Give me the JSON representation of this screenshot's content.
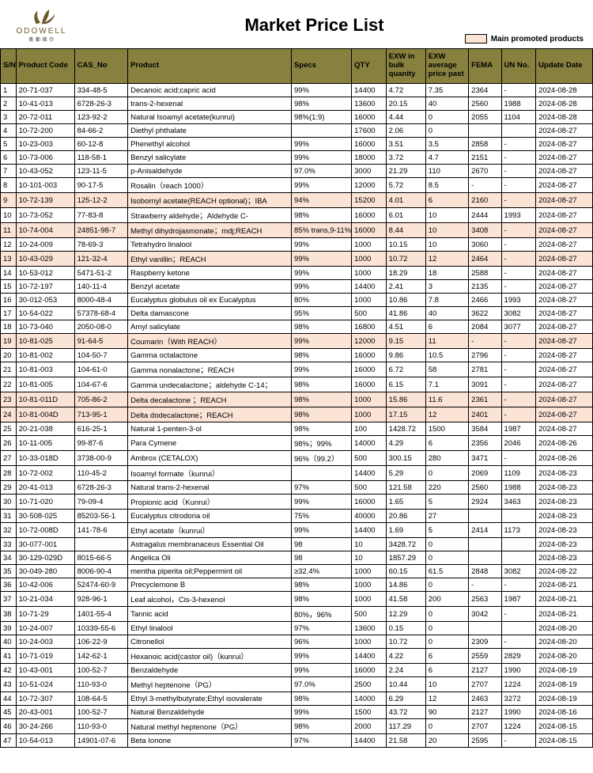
{
  "brand": {
    "name": "ODOWELL",
    "sub": "奥 都 维 尔"
  },
  "title": "Market Price List",
  "legend_label": "Main promoted products",
  "colors": {
    "header_bg": "#87803f",
    "promoted_bg": "#fbe3d5",
    "border": "#000000",
    "logo_brown": "#6b5a2a"
  },
  "columns": [
    "S/N",
    "Product Code",
    "CAS_No",
    "Product",
    "Specs",
    "QTY",
    "EXW in bulk quanity",
    "EXW average price past",
    "FEMA",
    "UN No.",
    "Update Date"
  ],
  "rows": [
    {
      "sn": "1",
      "pc": "20-71-037",
      "cas": "334-48-5",
      "prod": "Decanoic acid;capric acid",
      "specs": "99%",
      "qty": "14400",
      "exw1": "4.72",
      "exw2": "7.35",
      "fema": "2364",
      "un": "-",
      "date": "2024-08-28",
      "p": false
    },
    {
      "sn": "2",
      "pc": "10-41-013",
      "cas": "6728-26-3",
      "prod": "trans-2-hexenal",
      "specs": "98%",
      "qty": "13600",
      "exw1": "20.15",
      "exw2": "40",
      "fema": "2560",
      "un": "1988",
      "date": "2024-08-28",
      "p": false
    },
    {
      "sn": "3",
      "pc": "20-72-011",
      "cas": "123-92-2",
      "prod": "Natural Isoamyl acetate(kunrui)",
      "specs": "98%(1:9)",
      "qty": "16000",
      "exw1": "4.44",
      "exw2": "0",
      "fema": "2055",
      "un": "1104",
      "date": "2024-08-28",
      "p": false
    },
    {
      "sn": "4",
      "pc": "10-72-200",
      "cas": "84-66-2",
      "prod": "Diethyl phthalate",
      "specs": "",
      "qty": "17600",
      "exw1": "2.06",
      "exw2": "0",
      "fema": "",
      "un": "",
      "date": "2024-08-27",
      "p": false
    },
    {
      "sn": "5",
      "pc": "10-23-003",
      "cas": "60-12-8",
      "prod": "Phenethyl alcohol",
      "specs": "99%",
      "qty": "16000",
      "exw1": "3.51",
      "exw2": "3.5",
      "fema": "2858",
      "un": "-",
      "date": "2024-08-27",
      "p": false
    },
    {
      "sn": "6",
      "pc": "10-73-006",
      "cas": "118-58-1",
      "prod": "Benzyl salicylate",
      "specs": "99%",
      "qty": "18000",
      "exw1": "3.72",
      "exw2": "4.7",
      "fema": "2151",
      "un": "-",
      "date": "2024-08-27",
      "p": false
    },
    {
      "sn": "7",
      "pc": "10-43-052",
      "cas": "123-11-5",
      "prod": "p-Anisaldehyde",
      "specs": "97.0%",
      "qty": "3000",
      "exw1": "21.29",
      "exw2": "110",
      "fema": "2670",
      "un": "-",
      "date": "2024-08-27",
      "p": false
    },
    {
      "sn": "8",
      "pc": "10-101-003",
      "cas": "90-17-5",
      "prod": "Rosalin（reach 1000）",
      "specs": "99%",
      "qty": "12000",
      "exw1": "5.72",
      "exw2": "8.5",
      "fema": "-",
      "un": "-",
      "date": "2024-08-27",
      "p": false
    },
    {
      "sn": "9",
      "pc": "10-72-139",
      "cas": "125-12-2",
      "prod": "Isobornyl acetate(REACH optional)；IBA",
      "specs": "94%",
      "qty": "15200",
      "exw1": "4.01",
      "exw2": "6",
      "fema": "2160",
      "un": "-",
      "date": "2024-08-27",
      "p": true
    },
    {
      "sn": "10",
      "pc": "10-73-052",
      "cas": "77-83-8",
      "prod": "Strawberry aldehyde；Aldehyde C-",
      "specs": "98%",
      "qty": "16000",
      "exw1": "6.01",
      "exw2": "10",
      "fema": "2444",
      "un": "1993",
      "date": "2024-08-27",
      "p": false
    },
    {
      "sn": "11",
      "pc": "10-74-004",
      "cas": "24851-98-7",
      "prod": "Methyl dihydrojasmonate；mdj;REACH",
      "specs": "85% trans,9-11%",
      "qty": "16000",
      "exw1": "8.44",
      "exw2": "10",
      "fema": "3408",
      "un": "-",
      "date": "2024-08-27",
      "p": true
    },
    {
      "sn": "12",
      "pc": "10-24-009",
      "cas": "78-69-3",
      "prod": "Tetrahydro linalool",
      "specs": "99%",
      "qty": "1000",
      "exw1": "10.15",
      "exw2": "10",
      "fema": "3060",
      "un": "-",
      "date": "2024-08-27",
      "p": false
    },
    {
      "sn": "13",
      "pc": "10-43-029",
      "cas": "121-32-4",
      "prod": "Ethyl vanillin；REACH",
      "specs": "99%",
      "qty": "1000",
      "exw1": "10.72",
      "exw2": "12",
      "fema": "2464",
      "un": "-",
      "date": "2024-08-27",
      "p": true
    },
    {
      "sn": "14",
      "pc": "10-53-012",
      "cas": "5471-51-2",
      "prod": "Raspberry ketone",
      "specs": "99%",
      "qty": "1000",
      "exw1": "18.29",
      "exw2": "18",
      "fema": "2588",
      "un": "-",
      "date": "2024-08-27",
      "p": false
    },
    {
      "sn": "15",
      "pc": "10-72-197",
      "cas": "140-11-4",
      "prod": "Benzyl acetate",
      "specs": "99%",
      "qty": "14400",
      "exw1": "2.41",
      "exw2": "3",
      "fema": "2135",
      "un": "-",
      "date": "2024-08-27",
      "p": false
    },
    {
      "sn": "16",
      "pc": "30-012-053",
      "cas": "8000-48-4",
      "prod": "Eucalyptus globulus oil ex Eucalyptus",
      "specs": "80%",
      "qty": "1000",
      "exw1": "10.86",
      "exw2": "7.8",
      "fema": "2466",
      "un": "1993",
      "date": "2024-08-27",
      "p": false
    },
    {
      "sn": "17",
      "pc": "10-54-022",
      "cas": "57378-68-4",
      "prod": "Delta damascone",
      "specs": "95%",
      "qty": "500",
      "exw1": "41.86",
      "exw2": "40",
      "fema": "3622",
      "un": "3082",
      "date": "2024-08-27",
      "p": false
    },
    {
      "sn": "18",
      "pc": "10-73-040",
      "cas": "2050-08-0",
      "prod": "Amyl salicylate",
      "specs": "98%",
      "qty": "16800",
      "exw1": "4.51",
      "exw2": "6",
      "fema": "2084",
      "un": "3077",
      "date": "2024-08-27",
      "p": false
    },
    {
      "sn": "19",
      "pc": "10-81-025",
      "cas": "91-64-5",
      "prod": "Coumarin（With REACH）",
      "specs": "99%",
      "qty": "12000",
      "exw1": "9.15",
      "exw2": "11",
      "fema": "-",
      "un": "-",
      "date": "2024-08-27",
      "p": true
    },
    {
      "sn": "20",
      "pc": "10-81-002",
      "cas": "104-50-7",
      "prod": "Gamma octalactone",
      "specs": "98%",
      "qty": "16000",
      "exw1": "9.86",
      "exw2": "10.5",
      "fema": "2796",
      "un": "-",
      "date": "2024-08-27",
      "p": false
    },
    {
      "sn": "21",
      "pc": "10-81-003",
      "cas": "104-61-0",
      "prod": "Gamma nonalactone；REACH",
      "specs": "99%",
      "qty": "16000",
      "exw1": "6.72",
      "exw2": "58",
      "fema": "2781",
      "un": "-",
      "date": "2024-08-27",
      "p": false
    },
    {
      "sn": "22",
      "pc": "10-81-005",
      "cas": "104-67-6",
      "prod": "Gamma undecalactone；aldehyde C-14；",
      "specs": "98%",
      "qty": "16000",
      "exw1": "6.15",
      "exw2": "7.1",
      "fema": "3091",
      "un": "-",
      "date": "2024-08-27",
      "p": false
    },
    {
      "sn": "23",
      "pc": "10-81-011D",
      "cas": "705-86-2",
      "prod": "Delta decalactone ；REACH",
      "specs": "98%",
      "qty": "1000",
      "exw1": "15.86",
      "exw2": "11.6",
      "fema": "2361",
      "un": "-",
      "date": "2024-08-27",
      "p": true
    },
    {
      "sn": "24",
      "pc": "10-81-004D",
      "cas": "713-95-1",
      "prod": "Delta dodecalactone；REACH",
      "specs": "98%",
      "qty": "1000",
      "exw1": "17.15",
      "exw2": "12",
      "fema": "2401",
      "un": "-",
      "date": "2024-08-27",
      "p": true
    },
    {
      "sn": "25",
      "pc": "20-21-038",
      "cas": "616-25-1",
      "prod": "Natural 1-penten-3-ol",
      "specs": "98%",
      "qty": "100",
      "exw1": "1428.72",
      "exw2": "1500",
      "fema": "3584",
      "un": "1987",
      "date": "2024-08-27",
      "p": false
    },
    {
      "sn": "26",
      "pc": "10-11-005",
      "cas": "99-87-6",
      "prod": "Para Cymene",
      "specs": "98%；99%",
      "qty": "14000",
      "exw1": "4.29",
      "exw2": "6",
      "fema": "2356",
      "un": "2046",
      "date": "2024-08-26",
      "p": false
    },
    {
      "sn": "27",
      "pc": "10-33-018D",
      "cas": "3738-00-9",
      "prod": "Ambrox (CETALOX)",
      "specs": "96%（99.2）",
      "qty": "500",
      "exw1": "300.15",
      "exw2": "280",
      "fema": "3471",
      "un": "-",
      "date": "2024-08-26",
      "p": false
    },
    {
      "sn": "28",
      "pc": "10-72-002",
      "cas": "110-45-2",
      "prod": "Isoamyl formate（kunrui）",
      "specs": "",
      "qty": "14400",
      "exw1": "5.29",
      "exw2": "0",
      "fema": "2069",
      "un": "1109",
      "date": "2024-08-23",
      "p": false
    },
    {
      "sn": "29",
      "pc": "20-41-013",
      "cas": "6728-26-3",
      "prod": "Natural trans-2-hexenal",
      "specs": "97%",
      "qty": "500",
      "exw1": "121.58",
      "exw2": "220",
      "fema": "2560",
      "un": "1988",
      "date": "2024-08-23",
      "p": false
    },
    {
      "sn": "30",
      "pc": "10-71-020",
      "cas": "79-09-4",
      "prod": "Propionic acid（Kunrui）",
      "specs": "99%",
      "qty": "16000",
      "exw1": "1.65",
      "exw2": "5",
      "fema": "2924",
      "un": "3463",
      "date": "2024-08-23",
      "p": false
    },
    {
      "sn": "31",
      "pc": "30-508-025",
      "cas": "85203-56-1",
      "prod": "Eucalyptus citrodoria oil",
      "specs": "75%",
      "qty": "40000",
      "exw1": "20.86",
      "exw2": "27",
      "fema": "",
      "un": "",
      "date": "2024-08-23",
      "p": false
    },
    {
      "sn": "32",
      "pc": "10-72-008D",
      "cas": "141-78-6",
      "prod": "Ethyl acetate（kunrui）",
      "specs": "99%",
      "qty": "14400",
      "exw1": "1.69",
      "exw2": "5",
      "fema": "2414",
      "un": "1173",
      "date": "2024-08-23",
      "p": false
    },
    {
      "sn": "33",
      "pc": "30-077-001",
      "cas": "",
      "prod": "Astragalus membranaceus Essential Oil",
      "specs": "98",
      "qty": "10",
      "exw1": "3428.72",
      "exw2": "0",
      "fema": "",
      "un": "",
      "date": "2024-08-23",
      "p": false
    },
    {
      "sn": "34",
      "pc": "30-129-029D",
      "cas": "8015-66-5",
      "prod": "Angelica Oli",
      "specs": "98",
      "qty": "10",
      "exw1": "1857.29",
      "exw2": "0",
      "fema": "",
      "un": "",
      "date": "2024-08-23",
      "p": false
    },
    {
      "sn": "35",
      "pc": "30-049-280",
      "cas": "8006-90-4",
      "prod": "mentha piperita oil;Peppermint oil",
      "specs": "≥32.4%",
      "qty": "1000",
      "exw1": "60.15",
      "exw2": "61.5",
      "fema": "2848",
      "un": "3082",
      "date": "2024-08-22",
      "p": false
    },
    {
      "sn": "36",
      "pc": "10-42-006",
      "cas": "52474-60-9",
      "prod": "Precyclemone B",
      "specs": "98%",
      "qty": "1000",
      "exw1": "14.86",
      "exw2": "0",
      "fema": "-",
      "un": "-",
      "date": "2024-08-21",
      "p": false
    },
    {
      "sn": "37",
      "pc": "10-21-034",
      "cas": "928-96-1",
      "prod": "Leaf alcohol，Cis-3-hexenol",
      "specs": "98%",
      "qty": "1000",
      "exw1": "41.58",
      "exw2": "200",
      "fema": "2563",
      "un": "1987",
      "date": "2024-08-21",
      "p": false
    },
    {
      "sn": "38",
      "pc": "10-71-29",
      "cas": "1401-55-4",
      "prod": "Tannic acid",
      "specs": "80%，96%",
      "qty": "500",
      "exw1": "12.29",
      "exw2": "0",
      "fema": "3042",
      "un": "-",
      "date": "2024-08-21",
      "p": false
    },
    {
      "sn": "39",
      "pc": "10-24-007",
      "cas": "10339-55-6",
      "prod": "Ethyl linalool",
      "specs": "97%",
      "qty": "13600",
      "exw1": "0.15",
      "exw2": "0",
      "fema": "",
      "un": "",
      "date": "2024-08-20",
      "p": false
    },
    {
      "sn": "40",
      "pc": "10-24-003",
      "cas": "106-22-9",
      "prod": "Citronellol",
      "specs": "96%",
      "qty": "1000",
      "exw1": "10.72",
      "exw2": "0",
      "fema": "2309",
      "un": "-",
      "date": "2024-08-20",
      "p": false
    },
    {
      "sn": "41",
      "pc": "10-71-019",
      "cas": "142-62-1",
      "prod": "Hexanoic acid(castor oil)（kunrui）",
      "specs": "99%",
      "qty": "14400",
      "exw1": "4.22",
      "exw2": "6",
      "fema": "2559",
      "un": "2829",
      "date": "2024-08-20",
      "p": false
    },
    {
      "sn": "42",
      "pc": "10-43-001",
      "cas": "100-52-7",
      "prod": "Benzaldehyde",
      "specs": "99%",
      "qty": "16000",
      "exw1": "2.24",
      "exw2": "6",
      "fema": "2127",
      "un": "1990",
      "date": "2024-08-19",
      "p": false
    },
    {
      "sn": "43",
      "pc": "10-51-024",
      "cas": "110-93-0",
      "prod": "Methyl heptenone（PG）",
      "specs": "97.0%",
      "qty": "2500",
      "exw1": "10.44",
      "exw2": "10",
      "fema": "2707",
      "un": "1224",
      "date": "2024-08-19",
      "p": false
    },
    {
      "sn": "44",
      "pc": "10-72-307",
      "cas": "108-64-5",
      "prod": "Ethyl 3-methylbutyrate;Ethyl isovalerate",
      "specs": "98%",
      "qty": "14000",
      "exw1": "6.29",
      "exw2": "12",
      "fema": "2463",
      "un": "3272",
      "date": "2024-08-19",
      "p": false
    },
    {
      "sn": "45",
      "pc": "20-43-001",
      "cas": "100-52-7",
      "prod": "Natural Benzaldehyde",
      "specs": "99%",
      "qty": "1500",
      "exw1": "43.72",
      "exw2": "90",
      "fema": "2127",
      "un": "1990",
      "date": "2024-08-16",
      "p": false
    },
    {
      "sn": "46",
      "pc": "30-24-266",
      "cas": "110-93-0",
      "prod": "Natural methyl heptenone（PG）",
      "specs": "98%",
      "qty": "2000",
      "exw1": "117.29",
      "exw2": "0",
      "fema": "2707",
      "un": "1224",
      "date": "2024-08-15",
      "p": false
    },
    {
      "sn": "47",
      "pc": "10-54-013",
      "cas": "14901-07-6",
      "prod": "Beta Ionone",
      "specs": "97%",
      "qty": "14400",
      "exw1": "21.58",
      "exw2": "20",
      "fema": "2595",
      "un": "-",
      "date": "2024-08-15",
      "p": false
    }
  ]
}
